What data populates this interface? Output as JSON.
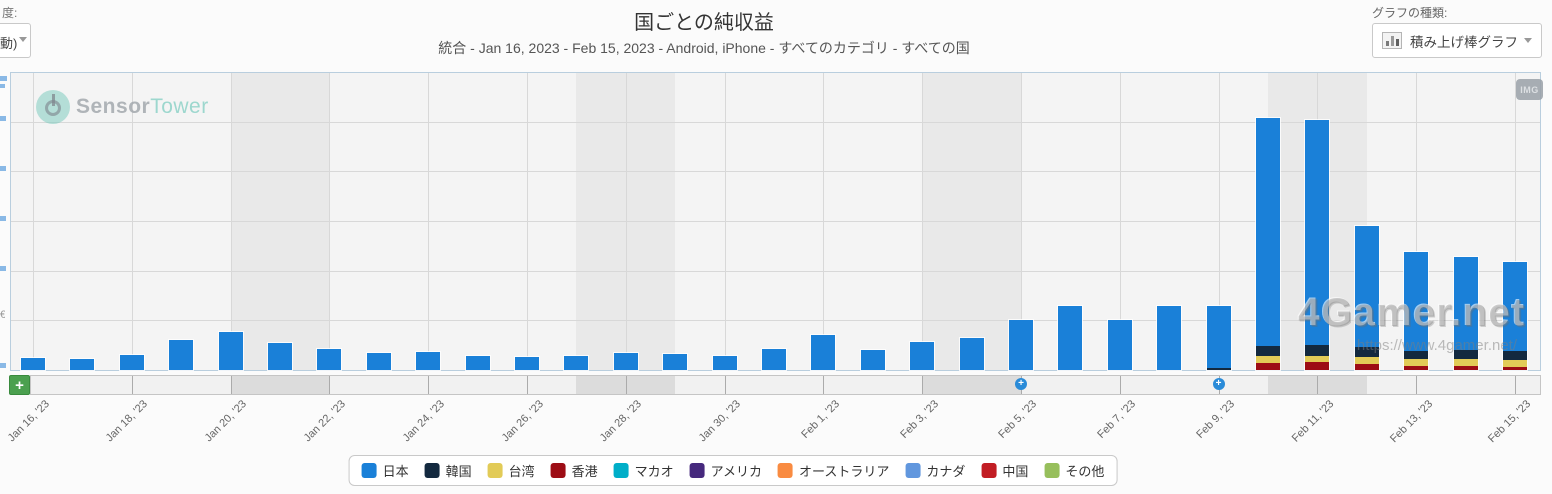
{
  "header": {
    "left_label_fragment": "度:",
    "left_dropdown_fragment": "動)",
    "title": "国ごとの純収益",
    "subtitle": "統合 - Jan 16, 2023 - Feb 15, 2023 - Android, iPhone - すべてのカテゴリ - すべての国",
    "chart_type_label": "グラフの種類:",
    "chart_type_value": "積み上げ棒グラフ"
  },
  "watermarks": {
    "sensortower_part1": "Sensor",
    "sensortower_part2": "Tower",
    "img_badge": "IMG",
    "site_name": "4Gamer.net",
    "site_url": "https://www.4gamer.net/"
  },
  "navigator": {
    "add_button_label": "+",
    "event_marker_glyph": "+"
  },
  "legend": {
    "items": [
      {
        "key": "japan",
        "label": "日本"
      },
      {
        "key": "korea",
        "label": "韓国"
      },
      {
        "key": "taiwan",
        "label": "台湾"
      },
      {
        "key": "hongkong",
        "label": "香港"
      },
      {
        "key": "macao",
        "label": "マカオ"
      },
      {
        "key": "usa",
        "label": "アメリカ"
      },
      {
        "key": "australia",
        "label": "オーストラリア"
      },
      {
        "key": "canada",
        "label": "カナダ"
      },
      {
        "key": "china",
        "label": "中国"
      },
      {
        "key": "other",
        "label": "その他"
      }
    ]
  },
  "chart_data": {
    "type": "bar",
    "stacked": true,
    "title": "国ごとの純収益",
    "xlabel": "",
    "ylabel": "",
    "grid": true,
    "legend_position": "bottom",
    "y_axis_note": "y-axis tick labels are cropped off at the left screen edge; bar values below are expressed in gridline units (1.0 = one horizontal gridline interval), y range shown = 0..6 units",
    "x_tick_labels": [
      "Jan 16, '23",
      "Jan 18, '23",
      "Jan 20, '23",
      "Jan 22, '23",
      "Jan 24, '23",
      "Jan 26, '23",
      "Jan 28, '23",
      "Jan 30, '23",
      "Feb 1, '23",
      "Feb 3, '23",
      "Feb 5, '23",
      "Feb 7, '23",
      "Feb 9, '23",
      "Feb 11, '23",
      "Feb 13, '23",
      "Feb 15, '23"
    ],
    "series_colors": {
      "japan": "#1a80d8",
      "korea": "#13293f",
      "taiwan": "#e2cb57",
      "hongkong": "#9d0d15",
      "macao": "#00aec8",
      "usa": "#46297d",
      "australia": "#f98b41",
      "canada": "#6197de",
      "china": "#c21d24",
      "other": "#97bf5c"
    },
    "bars": [
      {
        "date": "Jan 16",
        "segments": [
          [
            "japan",
            0.24
          ]
        ]
      },
      {
        "date": "Jan 17",
        "segments": [
          [
            "japan",
            0.22
          ]
        ]
      },
      {
        "date": "Jan 18",
        "segments": [
          [
            "japan",
            0.3
          ]
        ]
      },
      {
        "date": "Jan 19",
        "segments": [
          [
            "japan",
            0.6
          ]
        ]
      },
      {
        "date": "Jan 20",
        "segments": [
          [
            "japan",
            0.76
          ]
        ]
      },
      {
        "date": "Jan 21",
        "segments": [
          [
            "japan",
            0.55
          ]
        ]
      },
      {
        "date": "Jan 22",
        "segments": [
          [
            "japan",
            0.42
          ]
        ]
      },
      {
        "date": "Jan 23",
        "segments": [
          [
            "japan",
            0.34
          ]
        ]
      },
      {
        "date": "Jan 24",
        "segments": [
          [
            "japan",
            0.36
          ]
        ]
      },
      {
        "date": "Jan 25",
        "segments": [
          [
            "japan",
            0.28
          ]
        ]
      },
      {
        "date": "Jan 26",
        "segments": [
          [
            "japan",
            0.26
          ]
        ]
      },
      {
        "date": "Jan 27",
        "segments": [
          [
            "japan",
            0.29
          ]
        ]
      },
      {
        "date": "Jan 28",
        "segments": [
          [
            "japan",
            0.34
          ]
        ]
      },
      {
        "date": "Jan 29",
        "segments": [
          [
            "japan",
            0.32
          ]
        ]
      },
      {
        "date": "Jan 30",
        "segments": [
          [
            "japan",
            0.28
          ]
        ]
      },
      {
        "date": "Jan 31",
        "segments": [
          [
            "japan",
            0.42
          ]
        ]
      },
      {
        "date": "Feb 1",
        "segments": [
          [
            "japan",
            0.7
          ]
        ]
      },
      {
        "date": "Feb 2",
        "segments": [
          [
            "japan",
            0.4
          ]
        ]
      },
      {
        "date": "Feb 3",
        "segments": [
          [
            "japan",
            0.56
          ]
        ]
      },
      {
        "date": "Feb 4",
        "segments": [
          [
            "japan",
            0.64
          ]
        ]
      },
      {
        "date": "Feb 5",
        "segments": [
          [
            "japan",
            1.01
          ]
        ]
      },
      {
        "date": "Feb 6",
        "segments": [
          [
            "japan",
            1.29
          ]
        ]
      },
      {
        "date": "Feb 7",
        "segments": [
          [
            "japan",
            1.01
          ]
        ]
      },
      {
        "date": "Feb 8",
        "segments": [
          [
            "japan",
            1.29
          ]
        ]
      },
      {
        "date": "Feb 9",
        "segments": [
          [
            "korea",
            0.05
          ],
          [
            "japan",
            1.24
          ]
        ]
      },
      {
        "date": "Feb 10",
        "segments": [
          [
            "hongkong",
            0.15
          ],
          [
            "taiwan",
            0.13
          ],
          [
            "korea",
            0.2
          ],
          [
            "japan",
            4.59
          ]
        ]
      },
      {
        "date": "Feb 11",
        "segments": [
          [
            "hongkong",
            0.16
          ],
          [
            "taiwan",
            0.13
          ],
          [
            "korea",
            0.21
          ],
          [
            "japan",
            4.53
          ]
        ]
      },
      {
        "date": "Feb 12",
        "segments": [
          [
            "hongkong",
            0.12
          ],
          [
            "taiwan",
            0.14
          ],
          [
            "korea",
            0.21
          ],
          [
            "japan",
            2.43
          ]
        ]
      },
      {
        "date": "Feb 13",
        "segments": [
          [
            "hongkong",
            0.09
          ],
          [
            "taiwan",
            0.13
          ],
          [
            "korea",
            0.16
          ],
          [
            "japan",
            2.0
          ]
        ]
      },
      {
        "date": "Feb 14",
        "segments": [
          [
            "hongkong",
            0.09
          ],
          [
            "taiwan",
            0.14
          ],
          [
            "korea",
            0.18
          ],
          [
            "japan",
            1.87
          ]
        ]
      },
      {
        "date": "Feb 15",
        "segments": [
          [
            "hongkong",
            0.07
          ],
          [
            "taiwan",
            0.13
          ],
          [
            "korea",
            0.18
          ],
          [
            "japan",
            1.79
          ]
        ]
      }
    ],
    "weekend_bands_index_pairs": [
      [
        4,
        6
      ],
      [
        11,
        13
      ],
      [
        18,
        20
      ],
      [
        25,
        27
      ]
    ],
    "event_marker_indices": [
      20,
      24
    ]
  }
}
